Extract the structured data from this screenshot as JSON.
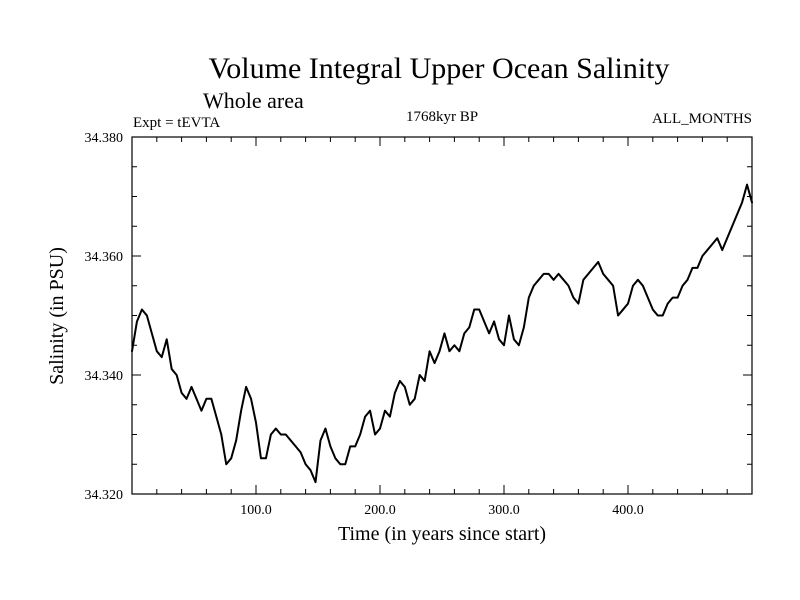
{
  "colors": {
    "background": "#ffffff",
    "line": "#000000",
    "axis": "#000000"
  },
  "chart_data": {
    "type": "line",
    "title": "Volume Integral Upper Ocean Salinity",
    "subtitle": "Whole area",
    "expt_label": "Expt = tEVTA",
    "period_label": "1768kyr BP",
    "months_label": "ALL_MONTHS",
    "xlabel": "Time (in years since start)",
    "ylabel": "Salinity (in PSU)",
    "xlim": [
      0,
      500
    ],
    "ylim": [
      34.32,
      34.38
    ],
    "x_ticks": [
      100,
      200,
      300,
      400
    ],
    "x_tick_labels": [
      "100.0",
      "200.0",
      "300.0",
      "400.0"
    ],
    "y_ticks": [
      34.32,
      34.34,
      34.36,
      34.38
    ],
    "y_tick_labels": [
      "34.320",
      "34.340",
      "34.360",
      "34.380"
    ],
    "x_minor_step": 20,
    "y_minor_step": 0.005,
    "grid": false,
    "series": [
      {
        "name": "Salinity",
        "x": [
          0,
          4,
          8,
          12,
          16,
          20,
          24,
          28,
          32,
          36,
          40,
          44,
          48,
          52,
          56,
          60,
          64,
          68,
          72,
          76,
          80,
          84,
          88,
          92,
          96,
          100,
          104,
          108,
          112,
          116,
          120,
          124,
          128,
          132,
          136,
          140,
          144,
          148,
          152,
          156,
          160,
          164,
          168,
          172,
          176,
          180,
          184,
          188,
          192,
          196,
          200,
          204,
          208,
          212,
          216,
          220,
          224,
          228,
          232,
          236,
          240,
          244,
          248,
          252,
          256,
          260,
          264,
          268,
          272,
          276,
          280,
          284,
          288,
          292,
          296,
          300,
          304,
          308,
          312,
          316,
          320,
          324,
          328,
          332,
          336,
          340,
          344,
          348,
          352,
          356,
          360,
          364,
          368,
          372,
          376,
          380,
          384,
          388,
          392,
          396,
          400,
          404,
          408,
          412,
          416,
          420,
          424,
          428,
          432,
          436,
          440,
          444,
          448,
          452,
          456,
          460,
          464,
          468,
          472,
          476,
          480,
          484,
          488,
          492,
          496,
          500
        ],
        "values": [
          34.344,
          34.349,
          34.351,
          34.35,
          34.347,
          34.344,
          34.343,
          34.346,
          34.341,
          34.34,
          34.337,
          34.336,
          34.338,
          34.336,
          34.334,
          34.336,
          34.336,
          34.333,
          34.33,
          34.325,
          34.326,
          34.329,
          34.334,
          34.338,
          34.336,
          34.332,
          34.326,
          34.326,
          34.33,
          34.331,
          34.33,
          34.33,
          34.329,
          34.328,
          34.327,
          34.325,
          34.324,
          34.322,
          34.329,
          34.331,
          34.328,
          34.326,
          34.325,
          34.325,
          34.328,
          34.328,
          34.33,
          34.333,
          34.334,
          34.33,
          34.331,
          34.334,
          34.333,
          34.337,
          34.339,
          34.338,
          34.335,
          34.336,
          34.34,
          34.339,
          34.344,
          34.342,
          34.344,
          34.347,
          34.344,
          34.345,
          34.344,
          34.347,
          34.348,
          34.351,
          34.351,
          34.349,
          34.347,
          34.349,
          34.346,
          34.345,
          34.35,
          34.346,
          34.345,
          34.348,
          34.353,
          34.355,
          34.356,
          34.357,
          34.357,
          34.356,
          34.357,
          34.356,
          34.355,
          34.353,
          34.352,
          34.356,
          34.357,
          34.358,
          34.359,
          34.357,
          34.356,
          34.355,
          34.35,
          34.351,
          34.352,
          34.355,
          34.356,
          34.355,
          34.353,
          34.351,
          34.35,
          34.35,
          34.352,
          34.353,
          34.353,
          34.355,
          34.356,
          34.358,
          34.358,
          34.36,
          34.361,
          34.362,
          34.363,
          34.361,
          34.363,
          34.365,
          34.367,
          34.369,
          34.372,
          34.369
        ]
      }
    ]
  }
}
